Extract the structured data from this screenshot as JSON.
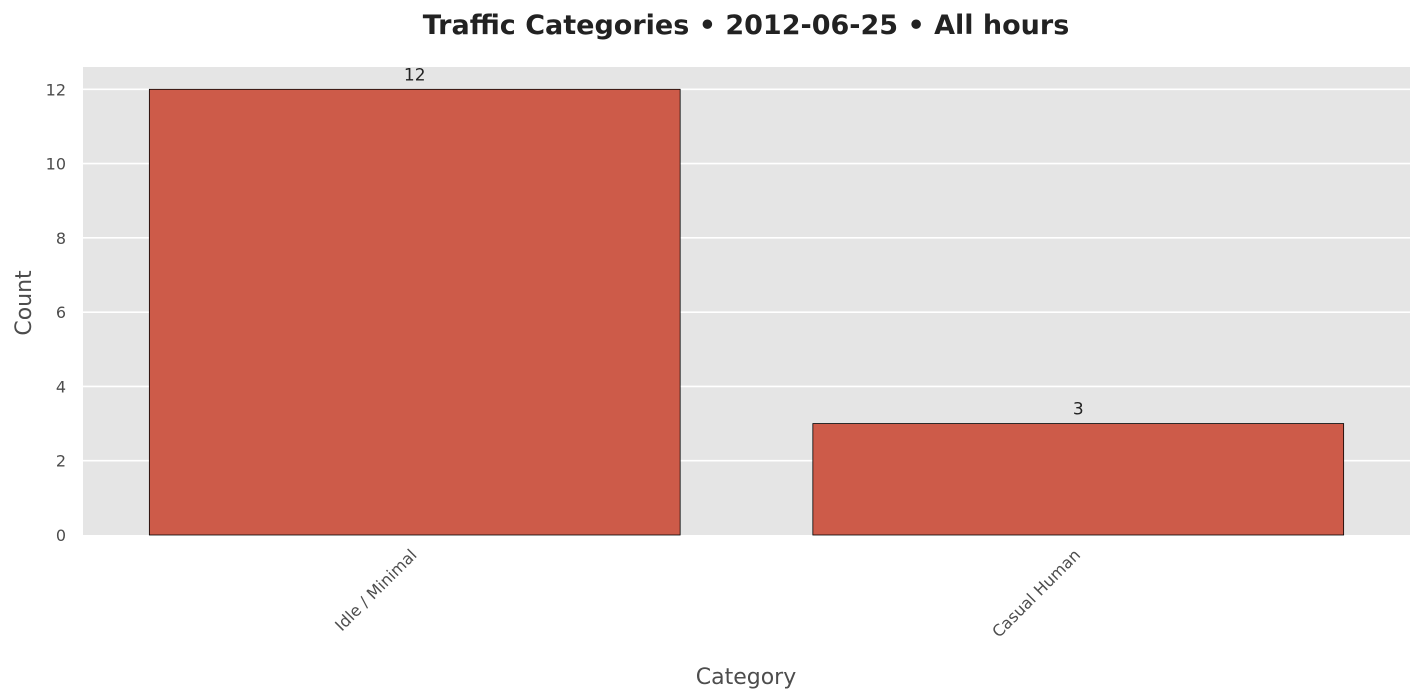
{
  "chart_data": {
    "type": "bar",
    "title": "Traffic Categories • 2012-06-25 • All hours",
    "xlabel": "Category",
    "ylabel": "Count",
    "categories": [
      "Idle / Minimal",
      "Casual Human"
    ],
    "values": [
      12,
      3
    ],
    "data_labels": [
      "12",
      "3"
    ],
    "ylim": [
      0,
      12.6
    ],
    "yticks": [
      0,
      2,
      4,
      6,
      8,
      10,
      12
    ],
    "ytick_labels": [
      "0",
      "2",
      "4",
      "6",
      "8",
      "10",
      "12"
    ],
    "grid": true,
    "legend": "none",
    "colors": {
      "bar": "#cd5b49",
      "bar_edge": "#000000",
      "plot_background": "#e5e5e5",
      "grid": "#ffffff"
    }
  }
}
